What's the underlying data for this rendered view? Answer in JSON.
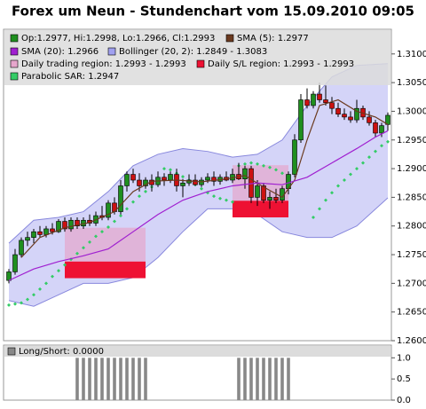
{
  "chart_data": {
    "type": "candlestick",
    "title": "Forex um Neun - Stundenchart vom 15.09.2010 09:05",
    "ylim": [
      1.26,
      1.3143
    ],
    "yticks": [
      {
        "value": 1.26,
        "label": "1.2600"
      },
      {
        "value": 1.265,
        "label": "1.2650"
      },
      {
        "value": 1.27,
        "label": "1.2700"
      },
      {
        "value": 1.275,
        "label": "1.2750"
      },
      {
        "value": 1.28,
        "label": "1.2800"
      },
      {
        "value": 1.285,
        "label": "1.2850"
      },
      {
        "value": 1.29,
        "label": "1.2900"
      },
      {
        "value": 1.295,
        "label": "1.2950"
      },
      {
        "value": 1.3,
        "label": "1.3000"
      },
      {
        "value": 1.305,
        "label": "1.3050"
      },
      {
        "value": 1.31,
        "label": "1.3100"
      }
    ],
    "ohlc": {
      "name": "Op:1.2977, Hi:1.2998, Lo:1.2966, Cl:1.2993",
      "color": "#1f8f1f",
      "down_color": "#cc1111",
      "open": [
        1.2705,
        1.272,
        1.275,
        1.2775,
        1.278,
        1.279,
        1.2785,
        1.2795,
        1.279,
        1.2808,
        1.2795,
        1.281,
        1.28,
        1.281,
        1.2805,
        1.2818,
        1.2815,
        1.284,
        1.2825,
        1.287,
        1.289,
        1.288,
        1.287,
        1.288,
        1.2872,
        1.2885,
        1.288,
        1.289,
        1.287,
        1.2875,
        1.288,
        1.2872,
        1.288,
        1.2885,
        1.2878,
        1.2885,
        1.288,
        1.289,
        1.2882,
        1.29,
        1.285,
        1.287,
        1.2845,
        1.285,
        1.2845,
        1.2865,
        1.289,
        1.295,
        1.302,
        1.301,
        1.303,
        1.302,
        1.3015,
        1.3005,
        1.2995,
        1.299,
        1.2985,
        1.3005,
        1.299,
        1.298,
        1.2962,
        1.2977
      ],
      "high": [
        1.2725,
        1.276,
        1.278,
        1.279,
        1.2795,
        1.28,
        1.28,
        1.2805,
        1.2812,
        1.2815,
        1.2815,
        1.2815,
        1.2815,
        1.282,
        1.2825,
        1.2835,
        1.2845,
        1.285,
        1.288,
        1.2895,
        1.29,
        1.2892,
        1.2885,
        1.289,
        1.2895,
        1.2892,
        1.2895,
        1.29,
        1.2882,
        1.289,
        1.289,
        1.2885,
        1.2892,
        1.2895,
        1.289,
        1.2895,
        1.29,
        1.291,
        1.2905,
        1.2905,
        1.288,
        1.2875,
        1.286,
        1.2865,
        1.287,
        1.2895,
        1.296,
        1.303,
        1.304,
        1.3035,
        1.305,
        1.3045,
        1.3025,
        1.3015,
        1.3005,
        1.3,
        1.302,
        1.301,
        1.3,
        1.2985,
        1.298,
        1.2998
      ],
      "low": [
        1.27,
        1.2715,
        1.2745,
        1.2765,
        1.277,
        1.278,
        1.278,
        1.2785,
        1.2788,
        1.279,
        1.279,
        1.2795,
        1.2795,
        1.28,
        1.28,
        1.281,
        1.281,
        1.282,
        1.282,
        1.286,
        1.2875,
        1.286,
        1.2865,
        1.286,
        1.2868,
        1.287,
        1.2875,
        1.286,
        1.285,
        1.287,
        1.287,
        1.2868,
        1.2875,
        1.287,
        1.2872,
        1.2878,
        1.2875,
        1.288,
        1.2865,
        1.284,
        1.2835,
        1.284,
        1.283,
        1.284,
        1.284,
        1.2855,
        1.2885,
        1.2945,
        1.3005,
        1.3005,
        1.3015,
        1.301,
        1.2995,
        1.299,
        1.2985,
        1.298,
        1.298,
        1.2985,
        1.2975,
        1.2955,
        1.2955,
        1.2966
      ],
      "close": [
        1.272,
        1.275,
        1.2775,
        1.278,
        1.279,
        1.2785,
        1.2795,
        1.279,
        1.2808,
        1.2795,
        1.281,
        1.28,
        1.281,
        1.2805,
        1.2818,
        1.2815,
        1.284,
        1.2825,
        1.287,
        1.289,
        1.288,
        1.287,
        1.288,
        1.2872,
        1.2885,
        1.288,
        1.289,
        1.287,
        1.2875,
        1.288,
        1.2872,
        1.288,
        1.2885,
        1.2878,
        1.2885,
        1.288,
        1.289,
        1.2882,
        1.29,
        1.285,
        1.287,
        1.2845,
        1.285,
        1.2845,
        1.2865,
        1.289,
        1.295,
        1.302,
        1.301,
        1.303,
        1.302,
        1.3015,
        1.3005,
        1.2995,
        1.299,
        1.2985,
        1.3005,
        1.299,
        1.298,
        1.2962,
        1.2975,
        1.2993
      ]
    },
    "bollinger": {
      "name": "Bollinger (20, 2): 1.2849 - 1.3083",
      "color": "#a0a0f0",
      "x": [
        0,
        4,
        8,
        12,
        16,
        20,
        24,
        28,
        32,
        36,
        40,
        44,
        48,
        52,
        56,
        61
      ],
      "upper": [
        1.277,
        1.281,
        1.2815,
        1.2825,
        1.286,
        1.2905,
        1.2925,
        1.2935,
        1.293,
        1.292,
        1.2925,
        1.295,
        1.301,
        1.306,
        1.308,
        1.3083
      ],
      "lower": [
        1.267,
        1.266,
        1.268,
        1.27,
        1.27,
        1.271,
        1.2745,
        1.279,
        1.283,
        1.283,
        1.282,
        1.279,
        1.278,
        1.278,
        1.28,
        1.2849
      ]
    },
    "trading_region": {
      "name": "Daily trading region: 1.2993 - 1.2993",
      "color": "#e6a6cc",
      "spans": [
        {
          "x": [
            9,
            22
          ],
          "range": [
            1.2738,
            1.2797
          ]
        },
        {
          "x": [
            36,
            45
          ],
          "range": [
            1.2844,
            1.2906
          ]
        }
      ]
    },
    "sl_region": {
      "name": "Daily S/L region: 1.2993 - 1.2993",
      "color": "#ee1133",
      "spans": [
        {
          "x": [
            9,
            22
          ],
          "range": [
            1.2709,
            1.2738
          ]
        },
        {
          "x": [
            36,
            45
          ],
          "range": [
            1.2815,
            1.2844
          ]
        }
      ]
    },
    "series": [
      {
        "name": "SMA (5): 1.2977",
        "color": "#6b3a1f",
        "x": [
          2,
          5,
          9,
          13,
          17,
          20,
          23,
          27,
          31,
          35,
          38,
          41,
          44,
          46,
          48,
          50,
          53,
          56,
          59,
          61
        ],
        "values": [
          1.2745,
          1.278,
          1.2797,
          1.2806,
          1.2825,
          1.286,
          1.2878,
          1.288,
          1.2877,
          1.2882,
          1.2888,
          1.2868,
          1.285,
          1.288,
          1.295,
          1.301,
          1.302,
          1.3,
          1.299,
          1.2977
        ]
      },
      {
        "name": "SMA (20): 1.2966",
        "color": "#a020d0",
        "x": [
          0,
          4,
          8,
          12,
          16,
          20,
          24,
          28,
          32,
          36,
          40,
          44,
          48,
          52,
          56,
          59,
          61
        ],
        "values": [
          1.2705,
          1.2725,
          1.2738,
          1.2748,
          1.276,
          1.279,
          1.282,
          1.2845,
          1.286,
          1.287,
          1.2875,
          1.2872,
          1.2885,
          1.291,
          1.2935,
          1.2955,
          1.2966
        ]
      }
    ],
    "sar": {
      "name": "Parabolic SAR: 1.2947",
      "color": "#33cc66",
      "values": [
        1.2662,
        1.2664,
        1.2666,
        1.2672,
        1.268,
        1.269,
        1.27,
        1.2712,
        1.2722,
        1.2732,
        1.2742,
        1.2752,
        1.2762,
        1.2772,
        1.2782,
        1.279,
        1.2798,
        1.2808,
        1.2818,
        1.283,
        1.2842,
        1.2852,
        1.286,
        1.2868,
        1.2875,
        1.29,
        1.2898,
        1.2892,
        1.2886,
        1.288,
        1.2872,
        1.2865,
        1.2858,
        1.2852,
        1.2848,
        1.2845,
        1.2842,
        1.2905,
        1.2908,
        1.291,
        1.2908,
        1.2905,
        1.2902,
        1.2898,
        1.2892,
        null,
        null,
        null,
        null,
        1.2815,
        1.283,
        1.2845,
        1.2858,
        1.287,
        1.288,
        1.289,
        1.29,
        1.291,
        1.292,
        1.293,
        1.294,
        1.2947
      ]
    },
    "lower_panel": {
      "name": "Long/Short: 0.0000",
      "color": "#888888",
      "ylim": [
        0,
        1.3
      ],
      "yticks": [
        {
          "value": 0,
          "label": "0.0"
        },
        {
          "value": 0.5,
          "label": "0.5"
        },
        {
          "value": 1,
          "label": "1.0"
        }
      ],
      "values": [
        0,
        0,
        0,
        0,
        0,
        0,
        0,
        0,
        0,
        0,
        0,
        1,
        1,
        1,
        1,
        1,
        1,
        1,
        1,
        1,
        1,
        1,
        1,
        0,
        0,
        0,
        0,
        0,
        0,
        0,
        0,
        0,
        0,
        0,
        0,
        0,
        0,
        1,
        1,
        1,
        1,
        1,
        1,
        1,
        1,
        1,
        0,
        0,
        0,
        0,
        0,
        0,
        0,
        0,
        0,
        0,
        0,
        0,
        0,
        0,
        0,
        0
      ]
    }
  }
}
